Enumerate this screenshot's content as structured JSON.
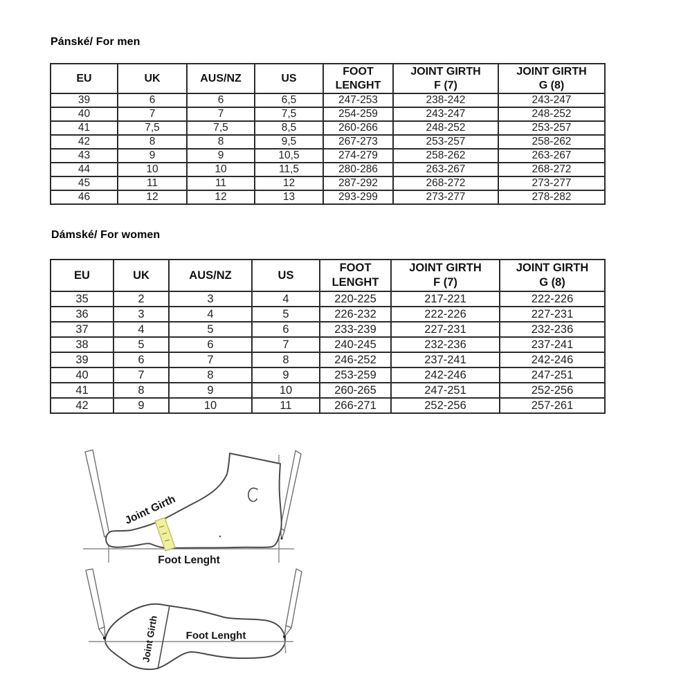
{
  "men_section": {
    "title": "Pánské/ For men",
    "table": {
      "headers": [
        "EU",
        "UK",
        "AUS/NZ",
        "US",
        "FOOT\nLENGHT",
        "JOINT GIRTH\nF (7)",
        "JOINT GIRTH\nG (8)"
      ],
      "rows": [
        [
          "39",
          "6",
          "6",
          "6,5",
          "247-253",
          "238-242",
          "243-247"
        ],
        [
          "40",
          "7",
          "7",
          "7,5",
          "254-259",
          "243-247",
          "248-252"
        ],
        [
          "41",
          "7,5",
          "7,5",
          "8,5",
          "260-266",
          "248-252",
          "253-257"
        ],
        [
          "42",
          "8",
          "8",
          "9,5",
          "267-273",
          "253-257",
          "258-262"
        ],
        [
          "43",
          "9",
          "9",
          "10,5",
          "274-279",
          "258-262",
          "263-267"
        ],
        [
          "44",
          "10",
          "10",
          "11,5",
          "280-286",
          "263-267",
          "268-272"
        ],
        [
          "45",
          "11",
          "11",
          "12",
          "287-292",
          "268-272",
          "273-277"
        ],
        [
          "46",
          "12",
          "12",
          "13",
          "293-299",
          "273-277",
          "278-282"
        ]
      ]
    }
  },
  "women_section": {
    "title": "Dámské/ For women",
    "table": {
      "headers": [
        "EU",
        "UK",
        "AUS/NZ",
        "US",
        "FOOT\nLENGHT",
        "JOINT GIRTH\nF (7)",
        "JOINT GIRTH\nG (8)"
      ],
      "rows": [
        [
          "35",
          "2",
          "3",
          "4",
          "220-225",
          "217-221",
          "222-226"
        ],
        [
          "36",
          "3",
          "4",
          "5",
          "226-232",
          "222-226",
          "227-231"
        ],
        [
          "37",
          "4",
          "5",
          "6",
          "233-239",
          "227-231",
          "232-236"
        ],
        [
          "38",
          "5",
          "6",
          "7",
          "240-245",
          "232-236",
          "237-241"
        ],
        [
          "39",
          "6",
          "7",
          "8",
          "246-252",
          "237-241",
          "242-246"
        ],
        [
          "40",
          "7",
          "8",
          "9",
          "253-259",
          "242-246",
          "247-251"
        ],
        [
          "41",
          "8",
          "9",
          "10",
          "260-265",
          "247-251",
          "252-256"
        ],
        [
          "42",
          "9",
          "10",
          "11",
          "266-271",
          "252-256",
          "257-261"
        ]
      ]
    }
  },
  "diagrams": {
    "side_view": {
      "joint_girth_label": "Joint Girth",
      "foot_length_label": "Foot Lenght"
    },
    "top_view": {
      "joint_girth_label": "Joint Girth",
      "foot_length_label": "Foot Lenght"
    }
  },
  "colors": {
    "text": "#1b1b1b",
    "table_border": "#2b2b2b",
    "diagram_stroke": "#4a4a4a",
    "tape_fill": "#efefa0",
    "tape_stroke": "#b9b954"
  }
}
